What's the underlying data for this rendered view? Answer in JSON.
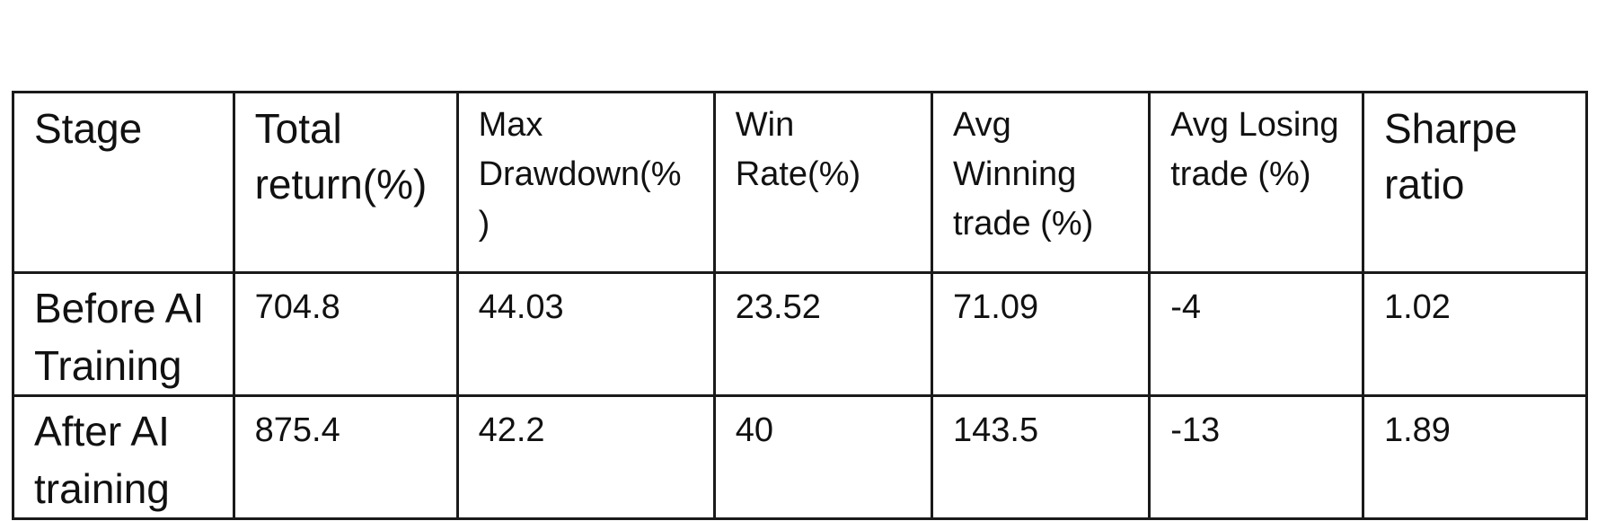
{
  "table": {
    "headers": [
      "Stage",
      "Total return(%)",
      "Max Drawdown(%)",
      "Win Rate(%)",
      "Avg Winning trade (%)",
      "Avg Losing trade (%)",
      "Sharpe ratio"
    ],
    "header_display": [
      "Stage",
      "Total\nreturn(%)",
      "Max\nDrawdown(%\n)",
      "Win\nRate(%)",
      "Avg\nWinning\ntrade (%)",
      "Avg Losing\ntrade (%)",
      "Sharpe\nratio"
    ],
    "rows": [
      {
        "stage": "Before AI\nTraining",
        "total_return": "704.8",
        "max_drawdown": "44.03",
        "win_rate": "23.52",
        "avg_winning_trade": "71.09",
        "avg_losing_trade": "-4",
        "sharpe_ratio": "1.02"
      },
      {
        "stage": "After AI\ntraining",
        "total_return": "875.4",
        "max_drawdown": "42.2",
        "win_rate": "40",
        "avg_winning_trade": "143.5",
        "avg_losing_trade": "-13",
        "sharpe_ratio": "1.89"
      }
    ]
  }
}
